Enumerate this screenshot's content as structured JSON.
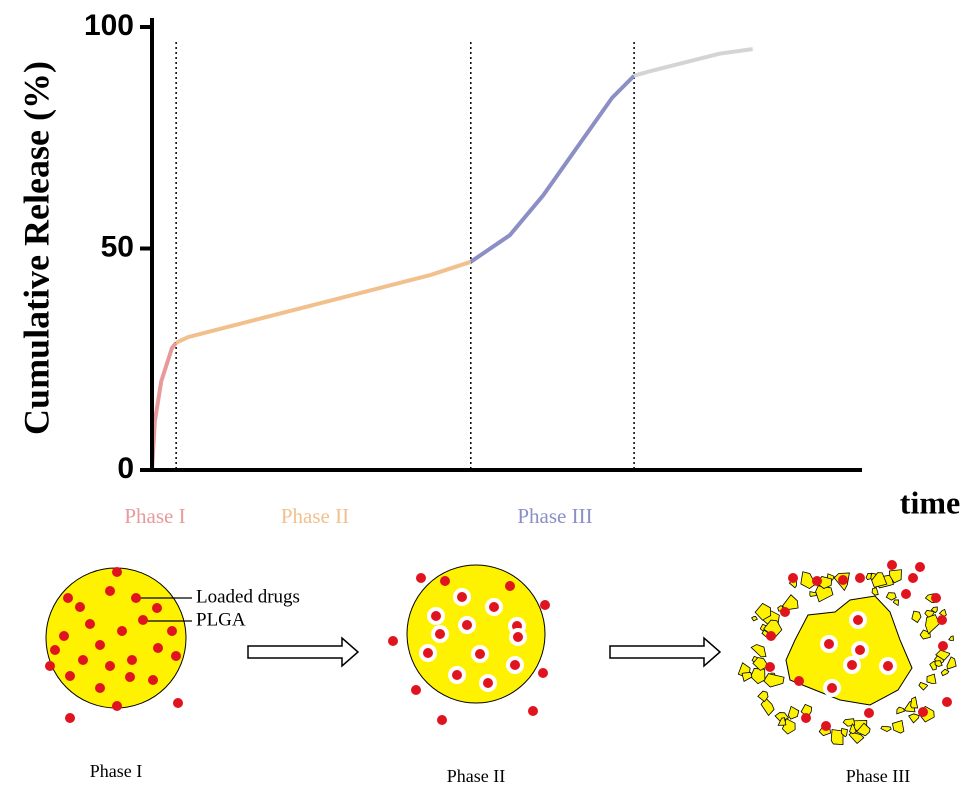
{
  "chart_data": {
    "type": "line",
    "y_label": "Cumulative Release (%)",
    "x_label": "time",
    "x": [
      0,
      0.4,
      1.3,
      2.8,
      3.4,
      5.1,
      39.2,
      44.9,
      50.4,
      55.1,
      64.8,
      67.9,
      70.1,
      80,
      84.6
    ],
    "xlim": [
      0,
      100
    ],
    "ylim": [
      0,
      100
    ],
    "yticks": [
      0,
      50,
      100
    ],
    "series": [
      {
        "name": "Phase I",
        "color": "#e89a9a",
        "values": [
          0,
          11,
          20,
          27.5,
          28.7,
          null,
          null,
          null,
          null,
          null,
          null,
          null,
          null,
          null,
          null
        ]
      },
      {
        "name": "Phase II",
        "color": "#f2c08d",
        "values": [
          null,
          null,
          null,
          null,
          28.7,
          30,
          44,
          47,
          null,
          null,
          null,
          null,
          null,
          null,
          null
        ]
      },
      {
        "name": "Phase III",
        "color": "#8b8fc6",
        "values": [
          null,
          null,
          null,
          null,
          null,
          null,
          null,
          47,
          53,
          62,
          84,
          89,
          null,
          null,
          null
        ]
      },
      {
        "color": "#d4d4d4",
        "values": [
          null,
          null,
          null,
          null,
          null,
          null,
          null,
          null,
          null,
          null,
          null,
          89,
          90,
          94,
          95
        ]
      }
    ]
  },
  "diagram": {
    "annotations": [
      "Loaded drugs",
      "PLGA"
    ],
    "stages": [
      "Phase I",
      "Phase II",
      "Phase III"
    ]
  }
}
